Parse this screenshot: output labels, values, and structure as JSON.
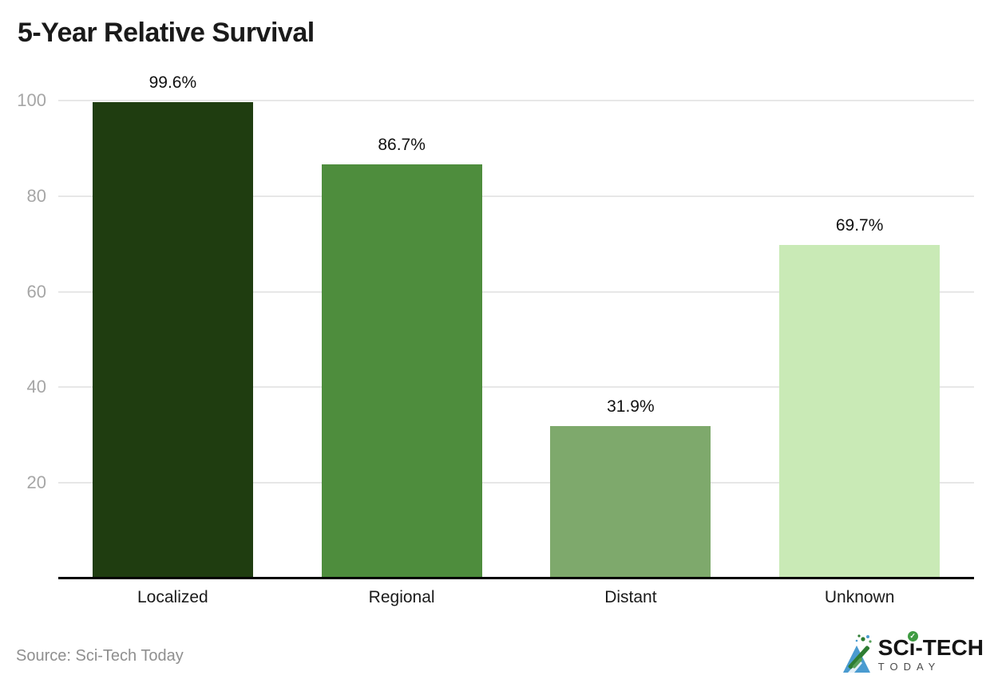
{
  "title": "5-Year Relative Survival",
  "source_credit": "Source: Sci-Tech Today",
  "logo": {
    "brand_left": "SC",
    "brand_i": "ı",
    "brand_right": "-TECH",
    "brand_bottom": "TODAY",
    "check_glyph": "✓"
  },
  "colors": {
    "background": "#ffffff",
    "title_text": "#1a1a1a",
    "gridline": "#e7e7e7",
    "ytick_text": "#a6a6a6",
    "axis_line": "#000000",
    "value_text": "#111111",
    "category_text": "#1a1a1a",
    "source_text": "#8f8f8f",
    "logo_blue": "#4a9bd0",
    "logo_green": "#2e7d32",
    "logo_check_green": "#3f9b42"
  },
  "chart_data": {
    "type": "bar",
    "title": "5-Year Relative Survival",
    "categories": [
      "Localized",
      "Regional",
      "Distant",
      "Unknown"
    ],
    "values": [
      99.6,
      86.7,
      31.9,
      69.7
    ],
    "value_labels": [
      "99.6%",
      "86.7%",
      "31.9%",
      "69.7%"
    ],
    "bar_colors": [
      "#1f3d10",
      "#4e8d3d",
      "#7ea96c",
      "#c9eab6"
    ],
    "xlabel": "",
    "ylabel": "",
    "ylim": [
      0,
      100
    ],
    "yticks": [
      20,
      40,
      60,
      80,
      100
    ],
    "grid": "horizontal",
    "legend": "none",
    "unit": "%"
  }
}
